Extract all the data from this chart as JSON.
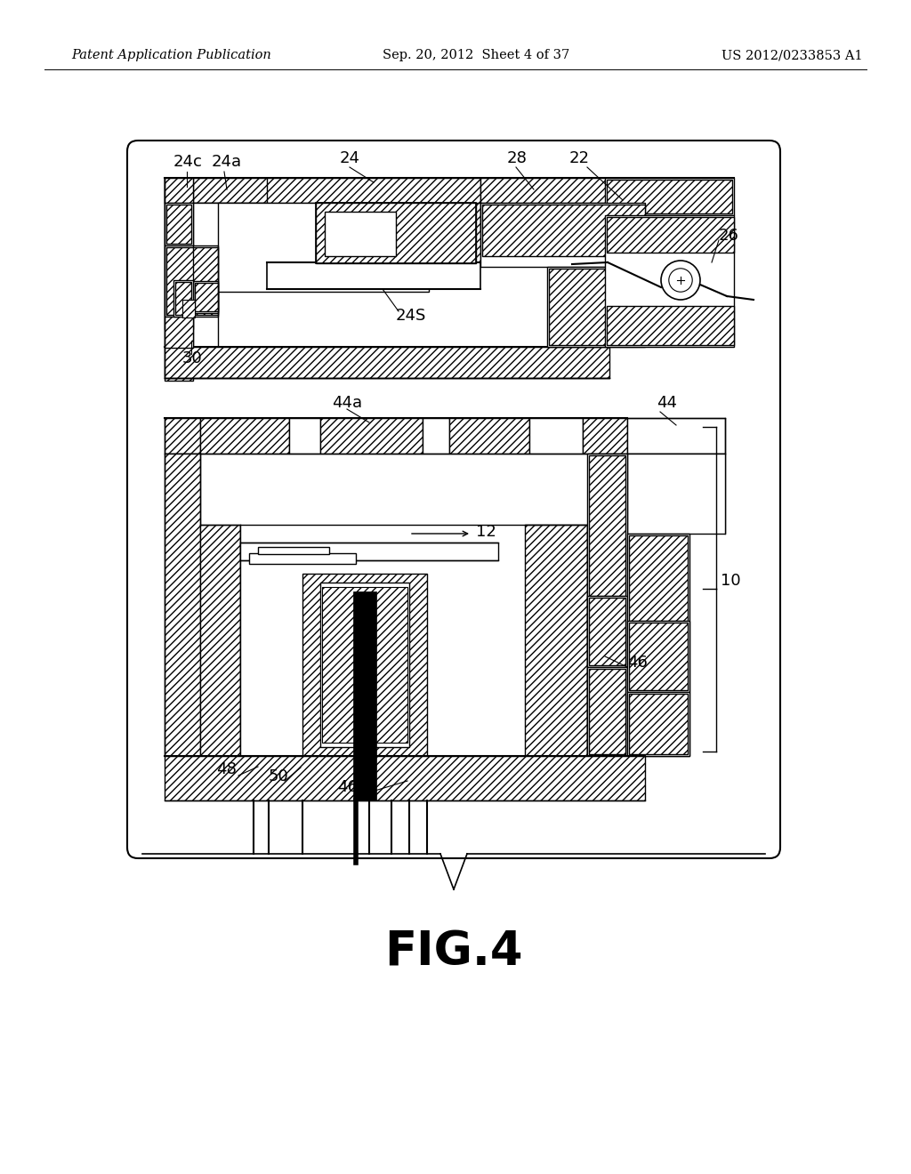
{
  "bg_color": "#ffffff",
  "header_left": "Patent Application Publication",
  "header_mid": "Sep. 20, 2012  Sheet 4 of 37",
  "header_right": "US 2012/0233853 A1",
  "fig_label": "FIG.4",
  "header_fontsize": 10.5,
  "fig_label_fontsize": 38,
  "label_fontsize": 13
}
